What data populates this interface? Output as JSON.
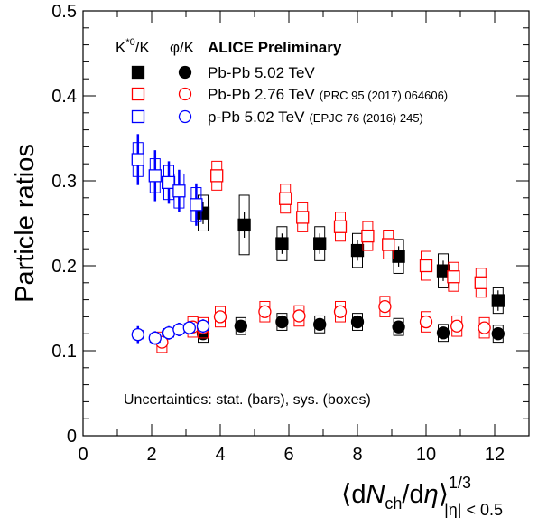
{
  "chart_data": {
    "type": "scatter",
    "title": "",
    "ylabel": "Particle ratios",
    "xlabel": {
      "open": "⟨d",
      "N": "N",
      "ch": "ch",
      "slash": "/d",
      "eta": "η",
      "close": "⟩",
      "power": "1/3",
      "subscript": "|η| < 0.5"
    },
    "xlim": [
      0,
      13
    ],
    "ylim": [
      0,
      0.5
    ],
    "xticks": [
      "0",
      "2",
      "4",
      "6",
      "8",
      "10",
      "12"
    ],
    "yticks": [
      "0",
      "0.1",
      "0.2",
      "0.3",
      "0.4",
      "0.5"
    ],
    "grid": false,
    "header": {
      "col1": "K*0/K",
      "col1_base": "K",
      "col1_sup": "*0",
      "col1_tail": "/K",
      "col2": "φ/K",
      "experiment": "ALICE Preliminary"
    },
    "legend": [
      {
        "label": "Pb-Pb 5.02 TeV",
        "ref": "",
        "color": "#000000",
        "fill": true
      },
      {
        "label": "Pb-Pb 2.76 TeV",
        "ref": "(PRC 95 (2017) 064606)",
        "color": "#ff0000",
        "fill": false
      },
      {
        "label": "p-Pb 5.02 TeV",
        "ref": "(EPJC 76 (2016) 245)",
        "color": "#0000ff",
        "fill": false
      }
    ],
    "note": "Uncertainties: stat. (bars), sys. (boxes)",
    "series": [
      {
        "name": "K*0/K Pb-Pb 5.02 TeV",
        "marker": "square",
        "fill": true,
        "color": "#000000",
        "points": [
          {
            "x": 3.5,
            "y": 0.262,
            "stat": 0.013,
            "sys": 0.021
          },
          {
            "x": 4.7,
            "y": 0.248,
            "stat": 0.015,
            "sys": 0.035
          },
          {
            "x": 5.8,
            "y": 0.226,
            "stat": 0.012,
            "sys": 0.02
          },
          {
            "x": 6.9,
            "y": 0.226,
            "stat": 0.012,
            "sys": 0.02
          },
          {
            "x": 8.0,
            "y": 0.218,
            "stat": 0.012,
            "sys": 0.02
          },
          {
            "x": 9.2,
            "y": 0.211,
            "stat": 0.012,
            "sys": 0.02
          },
          {
            "x": 10.5,
            "y": 0.194,
            "stat": 0.012,
            "sys": 0.02
          },
          {
            "x": 12.1,
            "y": 0.159,
            "stat": 0.012,
            "sys": 0.015
          }
        ]
      },
      {
        "name": "φ/K Pb-Pb 5.02 TeV",
        "marker": "circle",
        "fill": true,
        "color": "#000000",
        "points": [
          {
            "x": 3.5,
            "y": 0.12,
            "stat": 0.005,
            "sys": 0.01
          },
          {
            "x": 4.6,
            "y": 0.129,
            "stat": 0.005,
            "sys": 0.01
          },
          {
            "x": 5.8,
            "y": 0.134,
            "stat": 0.005,
            "sys": 0.01
          },
          {
            "x": 6.9,
            "y": 0.131,
            "stat": 0.005,
            "sys": 0.01
          },
          {
            "x": 8.0,
            "y": 0.134,
            "stat": 0.005,
            "sys": 0.01
          },
          {
            "x": 9.2,
            "y": 0.128,
            "stat": 0.005,
            "sys": 0.01
          },
          {
            "x": 10.5,
            "y": 0.121,
            "stat": 0.005,
            "sys": 0.01
          },
          {
            "x": 12.1,
            "y": 0.12,
            "stat": 0.005,
            "sys": 0.01
          }
        ]
      },
      {
        "name": "K*0/K Pb-Pb 2.76 TeV",
        "marker": "square",
        "fill": false,
        "color": "#ff0000",
        "points": [
          {
            "x": 3.9,
            "y": 0.306,
            "stat": 0.007,
            "sys": 0.017
          },
          {
            "x": 5.9,
            "y": 0.279,
            "stat": 0.007,
            "sys": 0.017
          },
          {
            "x": 6.4,
            "y": 0.257,
            "stat": 0.007,
            "sys": 0.017
          },
          {
            "x": 7.5,
            "y": 0.246,
            "stat": 0.007,
            "sys": 0.017
          },
          {
            "x": 8.3,
            "y": 0.235,
            "stat": 0.007,
            "sys": 0.017
          },
          {
            "x": 8.9,
            "y": 0.225,
            "stat": 0.007,
            "sys": 0.017
          },
          {
            "x": 10.0,
            "y": 0.2,
            "stat": 0.007,
            "sys": 0.017
          },
          {
            "x": 10.8,
            "y": 0.187,
            "stat": 0.007,
            "sys": 0.017
          },
          {
            "x": 11.6,
            "y": 0.18,
            "stat": 0.007,
            "sys": 0.017
          }
        ]
      },
      {
        "name": "φ/K Pb-Pb 2.76 TeV",
        "marker": "circle",
        "fill": false,
        "color": "#ff0000",
        "points": [
          {
            "x": 2.3,
            "y": 0.11,
            "stat": 0.005,
            "sys": 0.012
          },
          {
            "x": 3.2,
            "y": 0.128,
            "stat": 0.005,
            "sys": 0.012
          },
          {
            "x": 3.5,
            "y": 0.127,
            "stat": 0.005,
            "sys": 0.012
          },
          {
            "x": 4.0,
            "y": 0.14,
            "stat": 0.005,
            "sys": 0.012
          },
          {
            "x": 5.3,
            "y": 0.146,
            "stat": 0.005,
            "sys": 0.012
          },
          {
            "x": 6.3,
            "y": 0.141,
            "stat": 0.005,
            "sys": 0.012
          },
          {
            "x": 7.5,
            "y": 0.146,
            "stat": 0.005,
            "sys": 0.012
          },
          {
            "x": 8.8,
            "y": 0.152,
            "stat": 0.005,
            "sys": 0.012
          },
          {
            "x": 10.0,
            "y": 0.134,
            "stat": 0.005,
            "sys": 0.012
          },
          {
            "x": 10.9,
            "y": 0.129,
            "stat": 0.005,
            "sys": 0.012
          },
          {
            "x": 11.7,
            "y": 0.127,
            "stat": 0.005,
            "sys": 0.012
          }
        ]
      },
      {
        "name": "K*0/K p-Pb 5.02 TeV",
        "marker": "square",
        "fill": false,
        "color": "#0000ff",
        "points": [
          {
            "x": 1.6,
            "y": 0.325,
            "stat": 0.03,
            "sys": 0.02
          },
          {
            "x": 2.1,
            "y": 0.306,
            "stat": 0.03,
            "sys": 0.02
          },
          {
            "x": 2.5,
            "y": 0.298,
            "stat": 0.025,
            "sys": 0.02
          },
          {
            "x": 2.8,
            "y": 0.288,
            "stat": 0.025,
            "sys": 0.02
          },
          {
            "x": 3.3,
            "y": 0.272,
            "stat": 0.025,
            "sys": 0.02
          }
        ]
      },
      {
        "name": "φ/K p-Pb 5.02 TeV",
        "marker": "circle",
        "fill": false,
        "color": "#0000ff",
        "points": [
          {
            "x": 1.6,
            "y": 0.119,
            "stat": 0.01,
            "sys": 0.005
          },
          {
            "x": 2.1,
            "y": 0.115,
            "stat": 0.008,
            "sys": 0.005
          },
          {
            "x": 2.5,
            "y": 0.121,
            "stat": 0.008,
            "sys": 0.005
          },
          {
            "x": 2.8,
            "y": 0.125,
            "stat": 0.008,
            "sys": 0.005
          },
          {
            "x": 3.1,
            "y": 0.127,
            "stat": 0.008,
            "sys": 0.005
          },
          {
            "x": 3.5,
            "y": 0.129,
            "stat": 0.008,
            "sys": 0.005
          }
        ]
      }
    ]
  }
}
